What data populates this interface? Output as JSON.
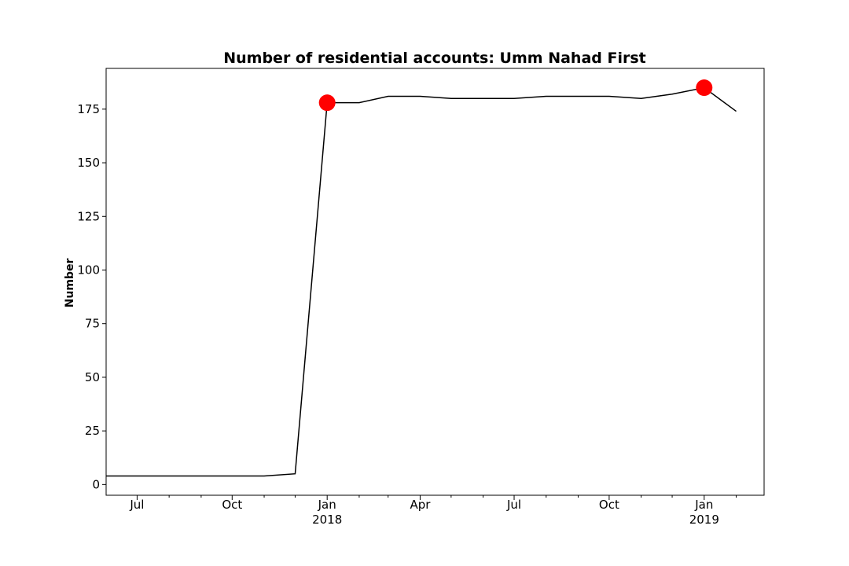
{
  "chart_data": {
    "type": "line",
    "title": "Number of residential accounts: Umm Nahad First",
    "xlabel": "",
    "ylabel": "Number",
    "ylim": [
      -5,
      194
    ],
    "xlim": [
      "2017-06-01",
      "2019-02-28"
    ],
    "yticks": [
      0,
      25,
      50,
      75,
      100,
      125,
      150,
      175
    ],
    "xticks": [
      {
        "date": "2017-07-01",
        "label": "Jul",
        "sublabel": ""
      },
      {
        "date": "2017-10-01",
        "label": "Oct",
        "sublabel": ""
      },
      {
        "date": "2018-01-01",
        "label": "Jan",
        "sublabel": "2018"
      },
      {
        "date": "2018-04-01",
        "label": "Apr",
        "sublabel": ""
      },
      {
        "date": "2018-07-01",
        "label": "Jul",
        "sublabel": ""
      },
      {
        "date": "2018-10-01",
        "label": "Oct",
        "sublabel": ""
      },
      {
        "date": "2019-01-01",
        "label": "Jan",
        "sublabel": "2019"
      }
    ],
    "minor_ticks": [
      "2017-08-01",
      "2017-09-01",
      "2017-11-01",
      "2017-12-01",
      "2018-02-01",
      "2018-03-01",
      "2018-05-01",
      "2018-06-01",
      "2018-08-01",
      "2018-09-01",
      "2018-11-01",
      "2018-12-01",
      "2019-02-01"
    ],
    "series": [
      {
        "color": "#000000",
        "points": [
          {
            "x": "2017-06-01",
            "y": 4
          },
          {
            "x": "2017-07-01",
            "y": 4
          },
          {
            "x": "2017-08-01",
            "y": 4
          },
          {
            "x": "2017-09-01",
            "y": 4
          },
          {
            "x": "2017-10-01",
            "y": 4
          },
          {
            "x": "2017-11-01",
            "y": 4
          },
          {
            "x": "2017-12-01",
            "y": 5
          },
          {
            "x": "2018-01-01",
            "y": 178
          },
          {
            "x": "2018-02-01",
            "y": 178
          },
          {
            "x": "2018-03-01",
            "y": 181
          },
          {
            "x": "2018-04-01",
            "y": 181
          },
          {
            "x": "2018-05-01",
            "y": 180
          },
          {
            "x": "2018-06-01",
            "y": 180
          },
          {
            "x": "2018-07-01",
            "y": 180
          },
          {
            "x": "2018-08-01",
            "y": 181
          },
          {
            "x": "2018-09-01",
            "y": 181
          },
          {
            "x": "2018-10-01",
            "y": 181
          },
          {
            "x": "2018-11-01",
            "y": 180
          },
          {
            "x": "2018-12-01",
            "y": 182
          },
          {
            "x": "2019-01-01",
            "y": 185
          },
          {
            "x": "2019-02-01",
            "y": 174
          }
        ]
      }
    ],
    "markers": [
      {
        "x": "2018-01-01",
        "y": 178,
        "color": "#ff0000"
      },
      {
        "x": "2019-01-01",
        "y": 185,
        "color": "#ff0000"
      }
    ],
    "grid": false,
    "legend": "none"
  }
}
